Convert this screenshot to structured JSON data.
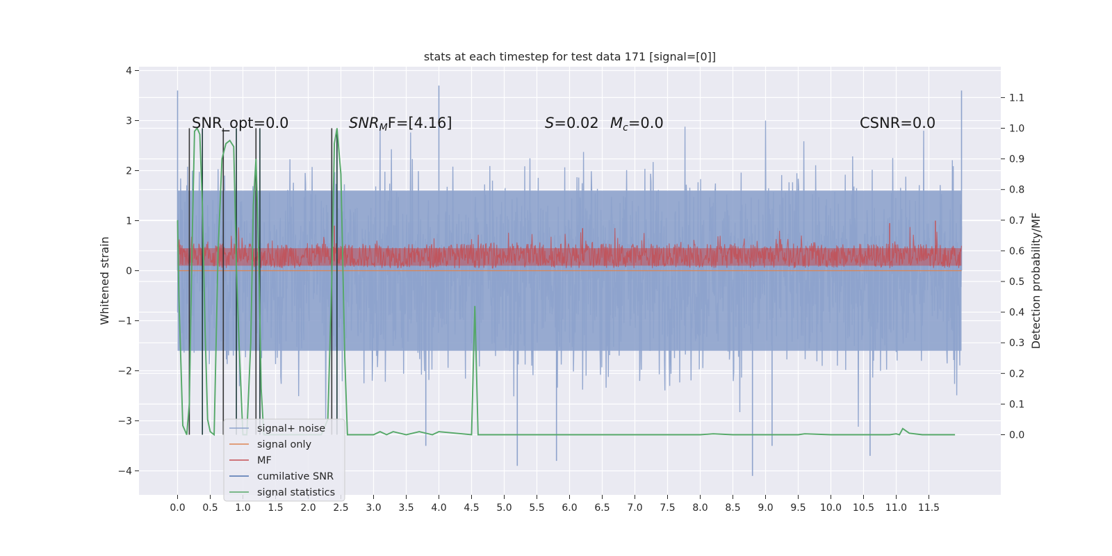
{
  "chart_data": {
    "type": "line",
    "title": "stats at each timestep for test data 171 [signal=[0]]",
    "xlabel": "",
    "ylabel": "Whitened strain",
    "ylabel_right": "Detection probability/MF",
    "xlim": [
      -0.5,
      12.7
    ],
    "ylim": [
      -4.45,
      4.1
    ],
    "ylim_right": [
      -0.2,
      1.2
    ],
    "x_ticks": [
      "0.0",
      "0.5",
      "1.0",
      "1.5",
      "2.0",
      "2.5",
      "3.0",
      "3.5",
      "4.0",
      "4.5",
      "5.0",
      "5.5",
      "6.0",
      "6.5",
      "7.0",
      "7.5",
      "8.0",
      "8.5",
      "9.0",
      "9.5",
      "10.0",
      "10.5",
      "11.0",
      "11.5"
    ],
    "y_ticks": [
      "4",
      "3",
      "2",
      "1",
      "0",
      "−1",
      "−2",
      "−3",
      "−4"
    ],
    "y_ticks_right": [
      "1.1",
      "1.0",
      "0.9",
      "0.8",
      "0.7",
      "0.6",
      "0.5",
      "0.4",
      "0.3",
      "0.2",
      "0.1",
      "0.0"
    ],
    "grid": true,
    "legend_position": "lower-left",
    "annotations": {
      "snr_opt": "SNR_opt=0.0",
      "snr_mf_pre": "SNR",
      "snr_mf_sub": "M",
      "snr_mf_post": "F=[4.16]",
      "s_pre": "S",
      "s_post": "=0.02",
      "mc_pre": "M",
      "mc_sub": "c",
      "mc_post": "=0.0",
      "csnr": "CSNR=0.0"
    },
    "series": [
      {
        "name": "signal+ noise",
        "color": "#8ea3cc",
        "axis": "left",
        "x_range": [
          0,
          12.0
        ],
        "envelope": [
          -2.0,
          2.0
        ],
        "spikes": [
          [
            0.0,
            3.6
          ],
          [
            4.0,
            3.7
          ],
          [
            12.0,
            3.6
          ],
          [
            8.8,
            -4.1
          ],
          [
            5.2,
            -3.9
          ],
          [
            5.8,
            -3.8
          ],
          [
            10.6,
            -3.7
          ],
          [
            3.8,
            -3.5
          ],
          [
            9.1,
            -3.5
          ]
        ]
      },
      {
        "name": "signal only",
        "color": "#dd8452",
        "axis": "left",
        "constant": 0.0
      },
      {
        "name": "MF",
        "color": "#c44e52",
        "axis": "left",
        "x_range": [
          0,
          12.0
        ],
        "band": [
          0.05,
          0.55
        ],
        "spikes": [
          [
            11.6,
            1.0
          ],
          [
            10.9,
            0.95
          ],
          [
            2.4,
            0.9
          ],
          [
            6.2,
            0.85
          ]
        ]
      },
      {
        "name": "cumilative SNR",
        "color": "#4c72b0",
        "axis": "right",
        "x_range": [
          0,
          2.6
        ]
      },
      {
        "name": "signal statistics",
        "color": "#55a868",
        "axis": "right",
        "x": [
          0.0,
          0.02,
          0.08,
          0.14,
          0.18,
          0.22,
          0.26,
          0.3,
          0.34,
          0.38,
          0.42,
          0.46,
          0.5,
          0.56,
          0.62,
          0.68,
          0.74,
          0.8,
          0.86,
          0.9,
          0.94,
          1.0,
          1.06,
          1.12,
          1.16,
          1.2,
          1.24,
          1.28,
          1.32,
          1.38,
          1.44,
          1.5,
          2.2,
          2.3,
          2.36,
          2.4,
          2.44,
          2.5,
          2.56,
          2.6,
          2.8,
          3.0,
          3.1,
          3.2,
          3.3,
          3.5,
          3.7,
          3.9,
          4.0,
          4.5,
          4.55,
          4.6,
          4.65,
          5.0,
          8.0,
          8.2,
          8.5,
          9.0,
          9.5,
          9.6,
          10.0,
          10.5,
          10.9,
          11.0,
          11.05,
          11.1,
          11.2,
          11.4,
          11.6,
          11.8,
          11.9
        ],
        "y": [
          0.7,
          0.45,
          0.03,
          0.0,
          0.1,
          0.6,
          0.99,
          1.0,
          0.98,
          0.75,
          0.35,
          0.05,
          0.01,
          0.0,
          0.6,
          0.9,
          0.95,
          0.96,
          0.94,
          0.55,
          0.3,
          0.0,
          0.0,
          0.3,
          0.75,
          0.9,
          0.6,
          0.15,
          0.0,
          0.0,
          0.0,
          0.0,
          0.0,
          0.05,
          0.5,
          0.95,
          1.0,
          0.85,
          0.25,
          0.0,
          0.0,
          0.0,
          0.01,
          0.0,
          0.01,
          0.0,
          0.01,
          0.0,
          0.01,
          0.0,
          0.42,
          0.0,
          0.0,
          0.0,
          0.0,
          0.003,
          0.0,
          0.0,
          0.0,
          0.003,
          0.0,
          0.0,
          0.0,
          0.003,
          0.0,
          0.02,
          0.005,
          0.0,
          0.0,
          0.0,
          0.0
        ]
      }
    ],
    "vertical_lines": {
      "color_a": "#333333",
      "color_b": "#1e3a3a",
      "x": [
        0.18,
        0.38,
        0.7,
        0.9,
        1.2,
        1.26,
        2.36,
        2.44
      ]
    }
  }
}
